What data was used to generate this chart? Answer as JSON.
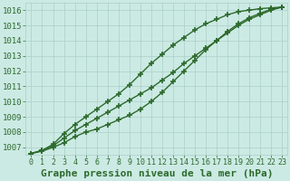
{
  "xlabel_hours": [
    0,
    1,
    2,
    3,
    4,
    5,
    6,
    7,
    8,
    9,
    10,
    11,
    12,
    13,
    14,
    15,
    16,
    17,
    18,
    19,
    20,
    21,
    22,
    23
  ],
  "line1_top": [
    1006.6,
    1006.8,
    1007.2,
    1007.9,
    1008.5,
    1009.0,
    1009.5,
    1010.0,
    1010.5,
    1011.1,
    1011.8,
    1012.5,
    1013.1,
    1013.7,
    1014.2,
    1014.7,
    1015.1,
    1015.4,
    1015.7,
    1015.9,
    1016.0,
    1016.1,
    1016.15,
    1016.2
  ],
  "line2_mid": [
    1006.6,
    1006.8,
    1007.1,
    1007.6,
    1008.1,
    1008.5,
    1008.9,
    1009.3,
    1009.7,
    1010.1,
    1010.5,
    1010.9,
    1011.4,
    1011.9,
    1012.5,
    1013.0,
    1013.5,
    1014.0,
    1014.5,
    1015.0,
    1015.4,
    1015.7,
    1016.0,
    1016.2
  ],
  "line3_bot": [
    1006.6,
    1006.75,
    1007.0,
    1007.3,
    1007.7,
    1008.0,
    1008.2,
    1008.5,
    1008.8,
    1009.1,
    1009.5,
    1010.0,
    1010.6,
    1011.3,
    1012.0,
    1012.7,
    1013.4,
    1014.0,
    1014.6,
    1015.1,
    1015.5,
    1015.8,
    1016.05,
    1016.2
  ],
  "ylim_min": 1006.5,
  "ylim_max": 1016.5,
  "yticks": [
    1007,
    1008,
    1009,
    1010,
    1011,
    1012,
    1013,
    1014,
    1015,
    1016
  ],
  "bg_color": "#cceae4",
  "grid_color": "#aacfc8",
  "line_color": "#2d6a2d",
  "marker": "+",
  "marker_size": 4,
  "marker_linewidth": 1.2,
  "line_width": 1.0,
  "xlabel": "Graphe pression niveau de la mer (hPa)",
  "xlabel_fontsize": 8,
  "ytick_fontsize": 6.5,
  "xtick_fontsize": 6.0,
  "figwidth": 3.2,
  "figheight": 2.0,
  "dpi": 100
}
